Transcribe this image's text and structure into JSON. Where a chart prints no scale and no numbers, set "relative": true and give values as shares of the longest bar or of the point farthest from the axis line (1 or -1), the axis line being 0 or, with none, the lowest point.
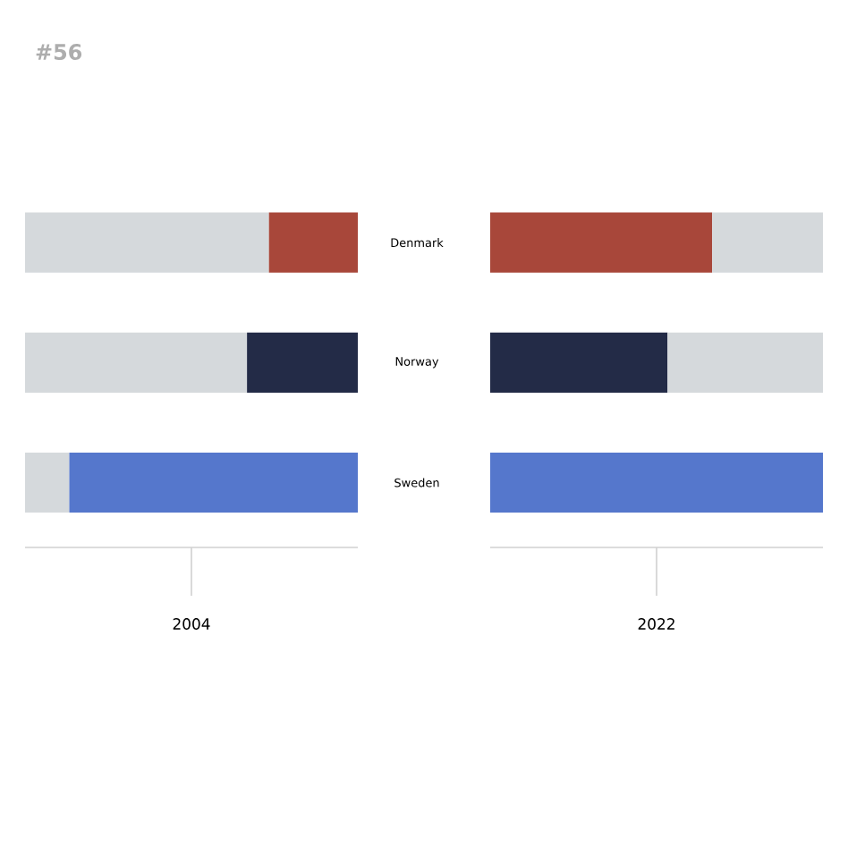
{
  "chart_data": [
    {
      "type": "bar",
      "title": "#56",
      "orientation": "horizontal",
      "stacked": true,
      "relative": true,
      "categories": [
        "Denmark",
        "Norway",
        "Sweden"
      ],
      "xlabel": "2004",
      "tick_labels": "y",
      "series": [
        {
          "color": "#d5d9dc",
          "values": [
            0.733,
            0.667,
            0.133
          ]
        },
        {
          "colors": [
            "#a8473a",
            "#232b47",
            "#5577cc"
          ],
          "values": [
            0.267,
            0.333,
            0.867
          ]
        }
      ]
    },
    {
      "type": "bar",
      "orientation": "horizontal",
      "stacked": true,
      "relative": true,
      "categories": [
        null,
        null,
        null
      ],
      "xlabel": "2022",
      "series": [
        {
          "colors": [
            "#a8473a",
            "#232b47",
            "#5577cc"
          ],
          "values": [
            0.667,
            0.533,
            1
          ]
        },
        {
          "color": "#d5d9dc",
          "values": [
            0.333,
            0.467,
            0
          ]
        }
      ]
    }
  ]
}
